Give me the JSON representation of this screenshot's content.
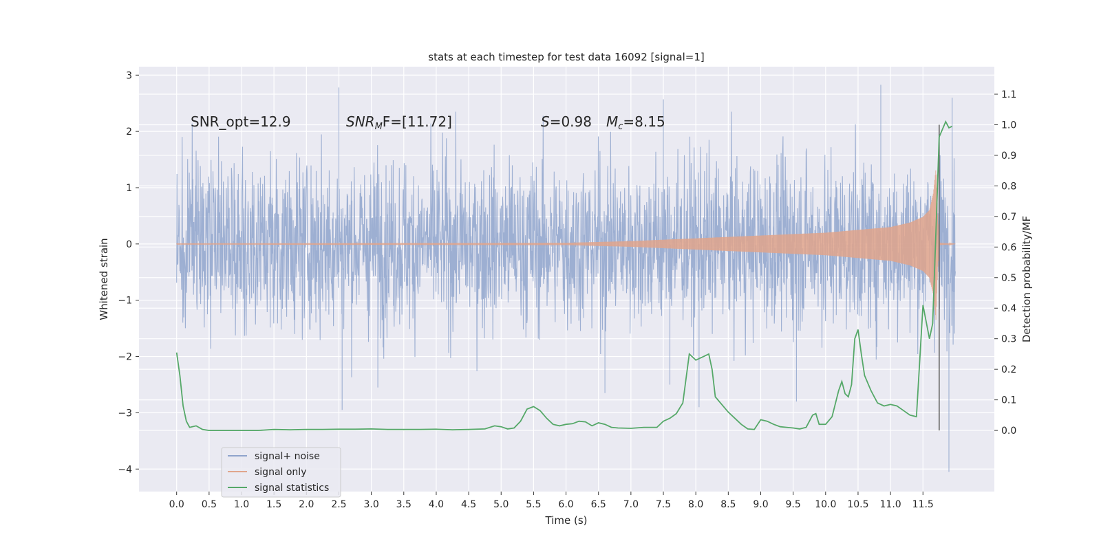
{
  "chart_data": {
    "type": "line",
    "title": "stats at each timestep for test data 16092 [signal=1]",
    "xlabel": "Time (s)",
    "ylabel_left": "Whitened strain",
    "ylabel_right": "Detection probability/MF",
    "xlim": [
      -0.58,
      12.6
    ],
    "ylim_left": [
      -4.4,
      3.15
    ],
    "ylim_right": [
      -0.2,
      1.19
    ],
    "x_ticks": [
      "0.0",
      "0.5",
      "1.0",
      "1.5",
      "2.0",
      "2.5",
      "3.0",
      "3.5",
      "4.0",
      "4.5",
      "5.0",
      "5.5",
      "6.0",
      "6.5",
      "7.0",
      "7.5",
      "8.0",
      "8.5",
      "9.0",
      "9.5",
      "10.0",
      "10.5",
      "11.0",
      "11.5"
    ],
    "y_ticks_left": [
      "3",
      "2",
      "1",
      "0",
      "−1",
      "−2",
      "−3",
      "−4"
    ],
    "y_ticks_right": [
      "1.1",
      "1.0",
      "0.9",
      "0.8",
      "0.7",
      "0.6",
      "0.5",
      "0.4",
      "0.3",
      "0.2",
      "0.1",
      "0.0"
    ],
    "grid": true,
    "annotations": {
      "snr_opt": "SNR_opt=12.9",
      "snr_mf_base": "SNR",
      "snr_mf_sub": "M",
      "snr_mf_tail": "F=[11.72]",
      "s_sym": "S",
      "s_val": "=0.98",
      "mc_sym": "M",
      "mc_sub": "c",
      "mc_val": "=8.15"
    },
    "legend": {
      "placement": "lower-left",
      "entries": [
        {
          "label": "signal+ noise",
          "color": "#8fa4cc"
        },
        {
          "label": "signal only",
          "color": "#e0a58c"
        },
        {
          "label": "signal statistics",
          "color": "#55a868"
        }
      ]
    },
    "vline_x": 11.75,
    "series": [
      {
        "name": "signal+ noise",
        "axis": "left",
        "color": "#8fa4cc",
        "sigma": 0.75,
        "x_range": [
          0,
          12.0
        ],
        "peaks": [
          {
            "x": 2.5,
            "y": 2.78
          },
          {
            "x": 7.5,
            "y": 2.57
          },
          {
            "x": 10.85,
            "y": 2.83
          },
          {
            "x": 11.95,
            "y": 2.6
          },
          {
            "x": 2.55,
            "y": -2.95
          },
          {
            "x": 11.9,
            "y": -4.05
          },
          {
            "x": 6.6,
            "y": -2.65
          },
          {
            "x": 8.05,
            "y": -2.9
          },
          {
            "x": 9.55,
            "y": -2.8
          },
          {
            "x": 3.1,
            "y": -2.55
          },
          {
            "x": 7.6,
            "y": -2.5
          }
        ]
      },
      {
        "name": "signal only",
        "axis": "left",
        "color": "#e0a58c",
        "envelope": [
          [
            0,
            0.01
          ],
          [
            6,
            0.02
          ],
          [
            7,
            0.05
          ],
          [
            8,
            0.1
          ],
          [
            9,
            0.15
          ],
          [
            10,
            0.2
          ],
          [
            10.5,
            0.25
          ],
          [
            11,
            0.3
          ],
          [
            11.3,
            0.38
          ],
          [
            11.5,
            0.48
          ],
          [
            11.6,
            0.6
          ],
          [
            11.66,
            0.9
          ],
          [
            11.7,
            1.35
          ],
          [
            11.73,
            0.4
          ],
          [
            11.76,
            0.02
          ],
          [
            12.0,
            0.0
          ]
        ]
      },
      {
        "name": "signal statistics",
        "axis": "right",
        "color": "#55a868",
        "x": [
          0.0,
          0.05,
          0.1,
          0.15,
          0.2,
          0.3,
          0.4,
          0.5,
          0.75,
          1.0,
          1.25,
          1.5,
          1.75,
          2.0,
          2.25,
          2.5,
          2.75,
          3.0,
          3.25,
          3.5,
          3.75,
          4.0,
          4.25,
          4.5,
          4.75,
          4.9,
          5.0,
          5.1,
          5.2,
          5.3,
          5.4,
          5.5,
          5.6,
          5.7,
          5.8,
          5.9,
          6.0,
          6.1,
          6.2,
          6.3,
          6.4,
          6.5,
          6.6,
          6.7,
          6.8,
          7.0,
          7.2,
          7.4,
          7.5,
          7.6,
          7.7,
          7.8,
          7.9,
          8.0,
          8.1,
          8.2,
          8.25,
          8.3,
          8.4,
          8.5,
          8.6,
          8.7,
          8.8,
          8.9,
          9.0,
          9.1,
          9.2,
          9.3,
          9.4,
          9.5,
          9.6,
          9.7,
          9.8,
          9.85,
          9.9,
          10.0,
          10.1,
          10.2,
          10.25,
          10.3,
          10.35,
          10.4,
          10.45,
          10.5,
          10.55,
          10.6,
          10.7,
          10.8,
          10.9,
          11.0,
          11.1,
          11.2,
          11.3,
          11.4,
          11.5,
          11.6,
          11.65,
          11.7,
          11.75,
          11.85,
          11.9,
          11.95
        ],
        "y": [
          0.255,
          0.18,
          0.08,
          0.03,
          0.01,
          0.015,
          0.003,
          0.0,
          0.0,
          0.0,
          0.0,
          0.003,
          0.002,
          0.003,
          0.003,
          0.004,
          0.004,
          0.005,
          0.003,
          0.003,
          0.003,
          0.004,
          0.002,
          0.003,
          0.005,
          0.015,
          0.012,
          0.005,
          0.008,
          0.03,
          0.07,
          0.078,
          0.065,
          0.04,
          0.02,
          0.015,
          0.02,
          0.022,
          0.03,
          0.028,
          0.015,
          0.025,
          0.02,
          0.01,
          0.008,
          0.007,
          0.01,
          0.01,
          0.03,
          0.04,
          0.055,
          0.09,
          0.25,
          0.23,
          0.24,
          0.25,
          0.2,
          0.11,
          0.085,
          0.06,
          0.04,
          0.02,
          0.005,
          0.003,
          0.035,
          0.03,
          0.02,
          0.012,
          0.01,
          0.008,
          0.005,
          0.01,
          0.05,
          0.055,
          0.02,
          0.02,
          0.045,
          0.13,
          0.16,
          0.12,
          0.11,
          0.15,
          0.3,
          0.33,
          0.25,
          0.18,
          0.13,
          0.09,
          0.08,
          0.085,
          0.08,
          0.065,
          0.05,
          0.045,
          0.41,
          0.3,
          0.35,
          0.65,
          0.96,
          1.01,
          0.99,
          0.995
        ]
      }
    ]
  }
}
